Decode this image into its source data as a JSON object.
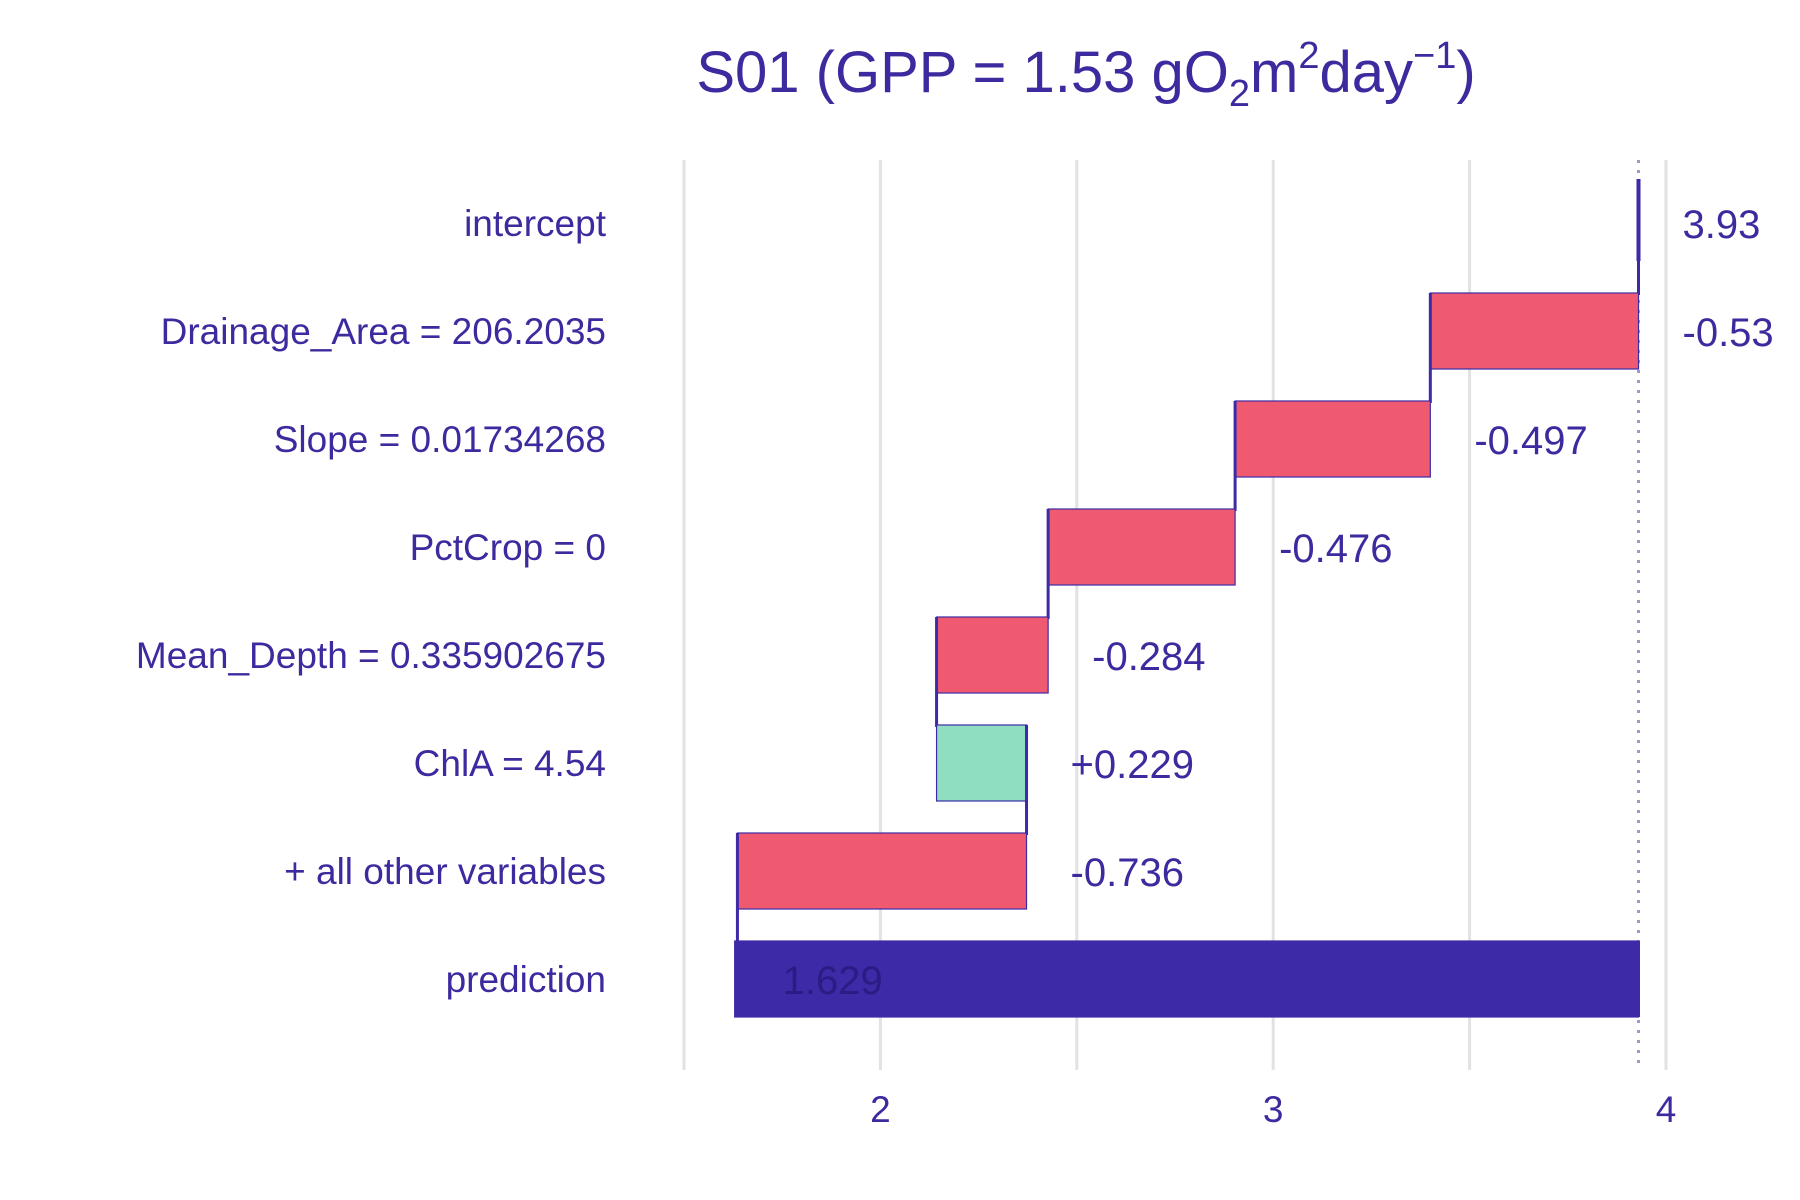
{
  "chart_data": {
    "type": "bar",
    "title": {
      "prefix": "S01 (GPP = 1.53 gO",
      "sub": "2",
      "mid1": "m",
      "sup1": "2",
      "mid2": "day",
      "sup2": "−1",
      "suffix": ")"
    },
    "xlabel": "",
    "ylabel": "",
    "xlim": [
      1.5,
      4.0
    ],
    "x_ticks": [
      2,
      3,
      4
    ],
    "x_tick_labels": [
      "2",
      "3",
      "4"
    ],
    "grid": true,
    "reference_line": 3.93,
    "rows": [
      {
        "label": "intercept",
        "start": 3.93,
        "end": 3.93,
        "value_label": "3.93",
        "kind": "intercept"
      },
      {
        "label": "Drainage_Area = 206.2035",
        "start": 3.93,
        "end": 3.4,
        "value_label": "-0.53",
        "kind": "negative"
      },
      {
        "label": "Slope = 0.01734268",
        "start": 3.4,
        "end": 2.903,
        "value_label": "-0.497",
        "kind": "negative"
      },
      {
        "label": "PctCrop = 0",
        "start": 2.903,
        "end": 2.427,
        "value_label": "-0.476",
        "kind": "negative"
      },
      {
        "label": "Mean_Depth = 0.335902675",
        "start": 2.427,
        "end": 2.143,
        "value_label": "-0.284",
        "kind": "negative"
      },
      {
        "label": "ChlA = 4.54",
        "start": 2.143,
        "end": 2.372,
        "value_label": "+0.229",
        "kind": "positive"
      },
      {
        "label": "+ all other variables",
        "start": 2.372,
        "end": 1.636,
        "value_label": "-0.736",
        "kind": "negative"
      },
      {
        "label": "prediction",
        "start": 1.629,
        "end": 3.93,
        "value_label": "1.629",
        "kind": "prediction"
      }
    ],
    "colors": {
      "negative": "#f05a71",
      "positive": "#8fdec1",
      "prediction": "#3c2aa6",
      "text": "#3d2a9f",
      "grid": "#e2e2e2",
      "reference": "#9f96d8"
    }
  }
}
